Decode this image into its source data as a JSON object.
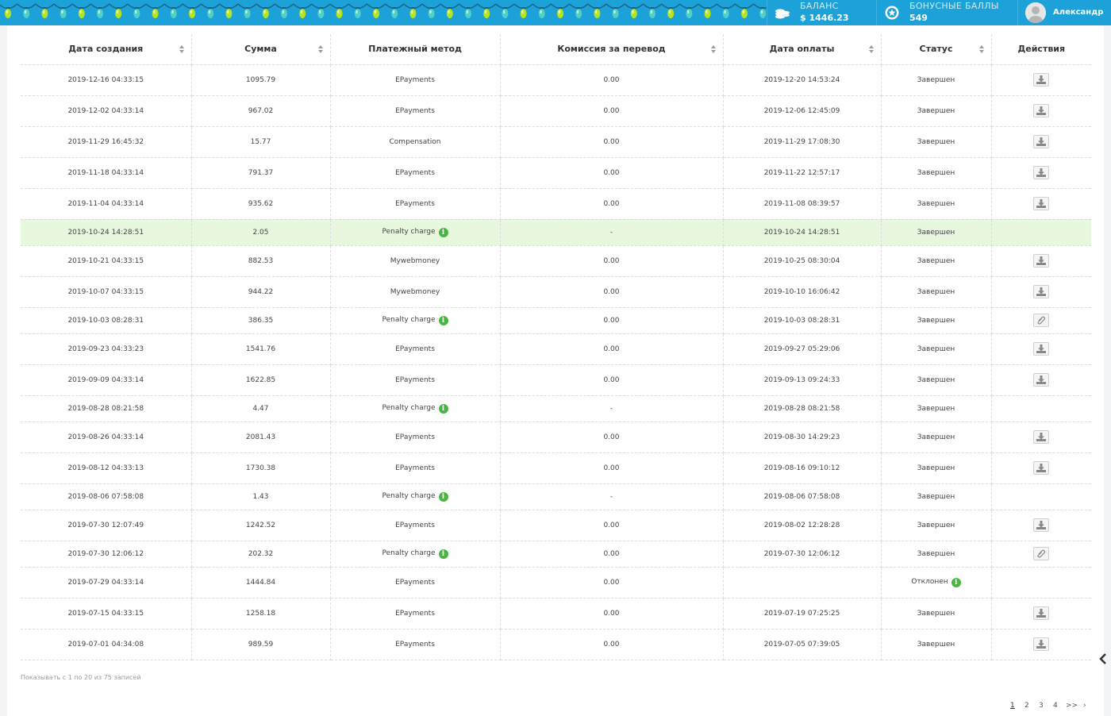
{
  "header": {
    "balance_label": "БАЛАНС",
    "balance_value": "$ 1446.23",
    "bonus_label": "БОНУСНЫЕ БАЛЛЫ",
    "bonus_value": "549",
    "user_name": "Александр"
  },
  "table": {
    "columns": [
      {
        "label": "Дата создания",
        "sortable": true
      },
      {
        "label": "Сумма",
        "sortable": true
      },
      {
        "label": "Платежный метод",
        "sortable": false
      },
      {
        "label": "Комиссия за перевод",
        "sortable": true
      },
      {
        "label": "Дата оплаты",
        "sortable": true
      },
      {
        "label": "Статус",
        "sortable": true
      },
      {
        "label": "Действия",
        "sortable": false
      }
    ],
    "rows": [
      {
        "created": "2019-12-16 04:33:15",
        "amount": "1095.79",
        "method": "EPayments",
        "method_info": false,
        "fee": "0.00",
        "paid": "2019-12-20 14:53:24",
        "status": "Завершен",
        "status_info": false,
        "action": "download-icon",
        "highlight": false
      },
      {
        "created": "2019-12-02 04:33:14",
        "amount": "967.02",
        "method": "EPayments",
        "method_info": false,
        "fee": "0.00",
        "paid": "2019-12-06 12:45:09",
        "status": "Завершен",
        "status_info": false,
        "action": "download-icon",
        "highlight": false
      },
      {
        "created": "2019-11-29 16:45:32",
        "amount": "15.77",
        "method": "Compensation",
        "method_info": false,
        "fee": "0.00",
        "paid": "2019-11-29 17:08:30",
        "status": "Завершен",
        "status_info": false,
        "action": "download-icon",
        "highlight": false
      },
      {
        "created": "2019-11-18 04:33:14",
        "amount": "791.37",
        "method": "EPayments",
        "method_info": false,
        "fee": "0.00",
        "paid": "2019-11-22 12:57:17",
        "status": "Завершен",
        "status_info": false,
        "action": "download-icon",
        "highlight": false
      },
      {
        "created": "2019-11-04 04:33:14",
        "amount": "935.62",
        "method": "EPayments",
        "method_info": false,
        "fee": "0.00",
        "paid": "2019-11-08 08:39:57",
        "status": "Завершен",
        "status_info": false,
        "action": "download-icon",
        "highlight": false
      },
      {
        "created": "2019-10-24 14:28:51",
        "amount": "2.05",
        "method": "Penalty charge",
        "method_info": true,
        "fee": "-",
        "paid": "2019-10-24 14:28:51",
        "status": "Завершен",
        "status_info": false,
        "action": "",
        "highlight": true
      },
      {
        "created": "2019-10-21 04:33:15",
        "amount": "882.53",
        "method": "Mywebmoney",
        "method_info": false,
        "fee": "0.00",
        "paid": "2019-10-25 08:30:04",
        "status": "Завершен",
        "status_info": false,
        "action": "download-icon",
        "highlight": false
      },
      {
        "created": "2019-10-07 04:33:15",
        "amount": "944.22",
        "method": "Mywebmoney",
        "method_info": false,
        "fee": "0.00",
        "paid": "2019-10-10 16:06:42",
        "status": "Завершен",
        "status_info": false,
        "action": "download-icon",
        "highlight": false
      },
      {
        "created": "2019-10-03 08:28:31",
        "amount": "386.35",
        "method": "Penalty charge",
        "method_info": true,
        "fee": "0.00",
        "paid": "2019-10-03 08:28:31",
        "status": "Завершен",
        "status_info": false,
        "action": "paperclip-icon",
        "highlight": false
      },
      {
        "created": "2019-09-23 04:33:23",
        "amount": "1541.76",
        "method": "EPayments",
        "method_info": false,
        "fee": "0.00",
        "paid": "2019-09-27 05:29:06",
        "status": "Завершен",
        "status_info": false,
        "action": "download-icon",
        "highlight": false
      },
      {
        "created": "2019-09-09 04:33:14",
        "amount": "1622.85",
        "method": "EPayments",
        "method_info": false,
        "fee": "0.00",
        "paid": "2019-09-13 09:24:33",
        "status": "Завершен",
        "status_info": false,
        "action": "download-icon",
        "highlight": false
      },
      {
        "created": "2019-08-28 08:21:58",
        "amount": "4.47",
        "method": "Penalty charge",
        "method_info": true,
        "fee": "-",
        "paid": "2019-08-28 08:21:58",
        "status": "Завершен",
        "status_info": false,
        "action": "",
        "highlight": false
      },
      {
        "created": "2019-08-26 04:33:14",
        "amount": "2081.43",
        "method": "EPayments",
        "method_info": false,
        "fee": "0.00",
        "paid": "2019-08-30 14:29:23",
        "status": "Завершен",
        "status_info": false,
        "action": "download-icon",
        "highlight": false
      },
      {
        "created": "2019-08-12 04:33:13",
        "amount": "1730.38",
        "method": "EPayments",
        "method_info": false,
        "fee": "0.00",
        "paid": "2019-08-16 09:10:12",
        "status": "Завершен",
        "status_info": false,
        "action": "download-icon",
        "highlight": false
      },
      {
        "created": "2019-08-06 07:58:08",
        "amount": "1.43",
        "method": "Penalty charge",
        "method_info": true,
        "fee": "-",
        "paid": "2019-08-06 07:58:08",
        "status": "Завершен",
        "status_info": false,
        "action": "",
        "highlight": false
      },
      {
        "created": "2019-07-30 12:07:49",
        "amount": "1242.52",
        "method": "EPayments",
        "method_info": false,
        "fee": "0.00",
        "paid": "2019-08-02 12:28:28",
        "status": "Завершен",
        "status_info": false,
        "action": "download-icon",
        "highlight": false
      },
      {
        "created": "2019-07-30 12:06:12",
        "amount": "202.32",
        "method": "Penalty charge",
        "method_info": true,
        "fee": "0.00",
        "paid": "2019-07-30 12:06:12",
        "status": "Завершен",
        "status_info": false,
        "action": "paperclip-icon",
        "highlight": false
      },
      {
        "created": "2019-07-29 04:33:14",
        "amount": "1444.84",
        "method": "EPayments",
        "method_info": false,
        "fee": "0.00",
        "paid": "",
        "status": "Отклонен",
        "status_info": true,
        "action": "",
        "highlight": false
      },
      {
        "created": "2019-07-15 04:33:15",
        "amount": "1258.18",
        "method": "EPayments",
        "method_info": false,
        "fee": "0.00",
        "paid": "2019-07-19 07:25:25",
        "status": "Завершен",
        "status_info": false,
        "action": "download-icon",
        "highlight": false
      },
      {
        "created": "2019-07-01 04:34:08",
        "amount": "989.59",
        "method": "EPayments",
        "method_info": false,
        "fee": "0.00",
        "paid": "2019-07-05 07:39:05",
        "status": "Завершен",
        "status_info": false,
        "action": "download-icon",
        "highlight": false
      }
    ]
  },
  "footer": {
    "summary": "Показывать с 1 по 20 из 75 записей",
    "pages": [
      "1",
      "2",
      "3",
      "4"
    ],
    "current_page": "1",
    "next_label": ">>",
    "last_label": "›"
  },
  "colors": {
    "topbar": "#1da1d9",
    "highlight_row": "#e8f8de",
    "info_badge": "#4bb543"
  }
}
